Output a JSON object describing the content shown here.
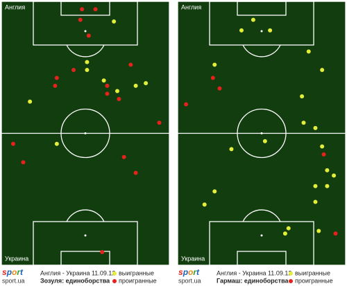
{
  "logo": {
    "mark": "sport",
    "site": "sport.ua"
  },
  "chart_data": [
    {
      "type": "scatter",
      "title": "Зозуля: единоборства",
      "subtitle": "Англия - Украина 11.09.12",
      "top_label": "Англия",
      "bottom_label": "Украина",
      "xlim": [
        0,
        100
      ],
      "ylim": [
        100,
        0
      ],
      "series": [
        {
          "name": "выигранные",
          "color": "#e3ee3a",
          "x": [
            67,
            51,
            51,
            61,
            86,
            80,
            69,
            17,
            33
          ],
          "values": [
            7.6,
            23,
            26,
            30,
            31,
            32,
            34,
            38,
            54
          ]
        },
        {
          "name": "проигранные",
          "color": "#e3231c",
          "x": [
            48,
            56,
            47,
            52,
            43,
            77,
            33,
            32,
            63,
            63,
            70,
            94,
            7,
            13,
            73,
            80,
            60
          ],
          "values": [
            3,
            3,
            7,
            13,
            26,
            24,
            29,
            32,
            32,
            35,
            37,
            46,
            54,
            61,
            59,
            65,
            95
          ]
        }
      ]
    },
    {
      "type": "scatter",
      "title": "Гармаш: единоборства",
      "subtitle": "Англия - Украина 11.09.12",
      "top_label": "Англия",
      "bottom_label": "Украина",
      "xlim": [
        0,
        100
      ],
      "ylim": [
        100,
        0
      ],
      "series": [
        {
          "name": "выигранные",
          "color": "#e3ee3a",
          "x": [
            45,
            38,
            55,
            78,
            86,
            22,
            74,
            75,
            82,
            52,
            32,
            86,
            89,
            93,
            82,
            89,
            22,
            16,
            82,
            66,
            64,
            84
          ],
          "values": [
            7,
            11,
            11,
            19,
            26,
            24,
            36,
            46,
            48,
            53,
            56,
            55,
            64,
            66,
            70,
            70,
            72,
            77,
            76,
            86,
            88,
            87
          ]
        },
        {
          "name": "проигранные",
          "color": "#e3231c",
          "x": [
            21,
            25,
            5,
            87,
            94
          ],
          "values": [
            29,
            33,
            39,
            58,
            88
          ]
        }
      ]
    }
  ]
}
